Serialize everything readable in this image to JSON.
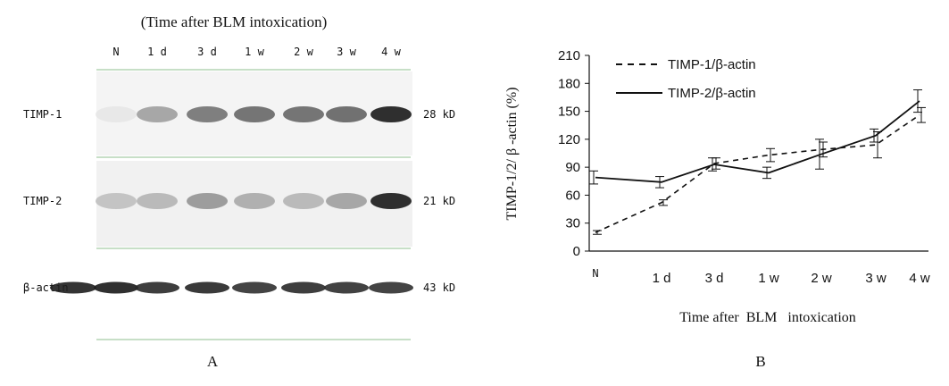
{
  "panel_a": {
    "title": "(Time after BLM intoxication)",
    "lanes": [
      "N",
      "1 d",
      "3 d",
      "1 w",
      "2 w",
      "3 w",
      "4 w"
    ],
    "rows": [
      {
        "label": "TIMP-1",
        "size": "28 kD",
        "intensity": [
          0.02,
          0.35,
          0.55,
          0.6,
          0.6,
          0.62,
          0.95
        ]
      },
      {
        "label": "TIMP-2",
        "size": "21 kD",
        "intensity": [
          0.2,
          0.25,
          0.4,
          0.3,
          0.25,
          0.35,
          0.95
        ]
      },
      {
        "label": "β-actin",
        "size": "43 kD",
        "intensity": [
          0.95,
          0.88,
          0.9,
          0.85,
          0.88,
          0.86,
          0.85
        ]
      }
    ],
    "caption": "A"
  },
  "chart_data": {
    "type": "line",
    "categories": [
      "N",
      "1 d",
      "3 d",
      "1 w",
      "2 w",
      "3 w",
      "4 w"
    ],
    "series": [
      {
        "name": "TIMP-1/β-actin",
        "style": "dashed",
        "values": [
          20,
          52,
          94,
          103,
          109,
          114,
          146
        ],
        "errors": [
          2,
          3,
          6,
          7,
          8,
          14,
          8
        ]
      },
      {
        "name": "TIMP-2/β-actin",
        "style": "solid",
        "values": [
          79,
          74,
          93,
          84,
          104,
          124,
          161
        ],
        "errors": [
          7,
          6,
          7,
          6,
          16,
          7,
          12
        ]
      }
    ],
    "xlabel": "Time after  BLM   intoxication",
    "ylabel": "TIMP-1/2/ β -actin (%)",
    "yticks": [
      0,
      30,
      60,
      90,
      120,
      150,
      180,
      210
    ],
    "ylim": [
      0,
      210
    ],
    "grid": false,
    "legend": "top-left",
    "caption": "B"
  }
}
